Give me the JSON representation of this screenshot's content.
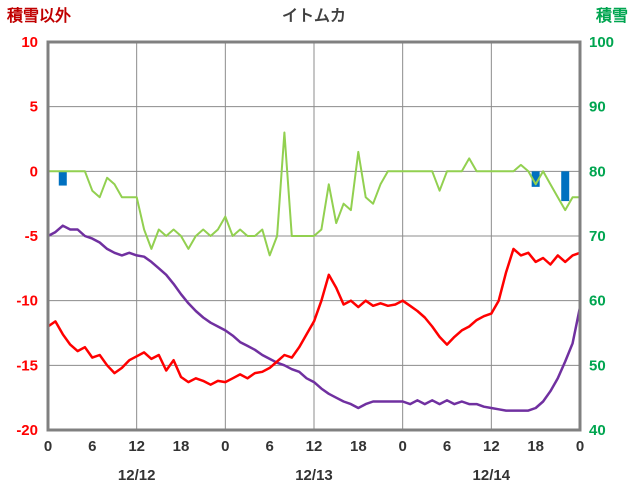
{
  "header": {
    "left_label": "積雪以外",
    "title": "イトムカ",
    "right_label": "積雪"
  },
  "chart_data": {
    "type": "line",
    "title": "イトムカ",
    "background": "#FFFFFF",
    "frame_color": "#808080",
    "grid_color": "#8C8C8C",
    "hours_total": 72,
    "left_axis": {
      "label": "積雪以外",
      "min": -20,
      "max": 10,
      "ticks": [
        10,
        5,
        0,
        -5,
        -10,
        -15,
        -20
      ],
      "color": "#FF0000"
    },
    "right_axis": {
      "label": "積雪",
      "min": 40,
      "max": 100,
      "ticks": [
        100,
        90,
        80,
        70,
        60,
        50,
        40
      ],
      "color": "#00A550"
    },
    "x_axis": {
      "grid_every": 12,
      "color": "#333333",
      "ticks": [
        {
          "hour": 0,
          "label": "0"
        },
        {
          "hour": 6,
          "label": "6"
        },
        {
          "hour": 12,
          "label": "12"
        },
        {
          "hour": 18,
          "label": "18"
        },
        {
          "hour": 24,
          "label": "0"
        },
        {
          "hour": 30,
          "label": "6"
        },
        {
          "hour": 36,
          "label": "12"
        },
        {
          "hour": 42,
          "label": "18"
        },
        {
          "hour": 48,
          "label": "0"
        },
        {
          "hour": 54,
          "label": "6"
        },
        {
          "hour": 60,
          "label": "12"
        },
        {
          "hour": 66,
          "label": "18"
        },
        {
          "hour": 72,
          "label": "0"
        }
      ],
      "dates": [
        {
          "hour": 12,
          "label": "12/12"
        },
        {
          "hour": 36,
          "label": "12/13"
        },
        {
          "hour": 60,
          "label": "12/14"
        }
      ]
    },
    "series": [
      {
        "name": "green",
        "axis": "right",
        "color": "#92D050",
        "width": 2,
        "values": [
          80,
          80,
          80,
          80,
          80,
          80,
          77,
          76,
          79,
          78,
          76,
          76,
          76,
          71,
          68,
          71,
          70,
          71,
          70,
          68,
          70,
          71,
          70,
          71,
          73,
          70,
          71,
          70,
          70,
          71,
          67,
          70,
          86,
          70,
          70,
          70,
          70,
          71,
          78,
          72,
          75,
          74,
          83,
          76,
          75,
          78,
          80,
          80,
          80,
          80,
          80,
          80,
          80,
          77,
          80,
          80,
          80,
          82,
          80,
          80,
          80,
          80,
          80,
          80,
          81,
          80,
          78,
          80,
          78,
          76,
          74,
          76,
          76
        ]
      },
      {
        "name": "purple",
        "axis": "left",
        "color": "#7030A0",
        "width": 2.5,
        "values": [
          -5,
          -4.7,
          -4.2,
          -4.5,
          -4.5,
          -5,
          -5.2,
          -5.5,
          -6,
          -6.3,
          -6.5,
          -6.3,
          -6.5,
          -6.6,
          -7,
          -7.5,
          -8,
          -8.7,
          -9.5,
          -10.2,
          -10.8,
          -11.3,
          -11.7,
          -12,
          -12.3,
          -12.7,
          -13.2,
          -13.5,
          -13.8,
          -14.2,
          -14.5,
          -14.8,
          -15,
          -15.3,
          -15.5,
          -16,
          -16.3,
          -16.8,
          -17.2,
          -17.5,
          -17.8,
          -18,
          -18.3,
          -18,
          -17.8,
          -17.8,
          -17.8,
          -17.8,
          -17.8,
          -18,
          -17.7,
          -18,
          -17.7,
          -18,
          -17.7,
          -18,
          -17.8,
          -18,
          -18,
          -18.2,
          -18.3,
          -18.4,
          -18.5,
          -18.5,
          -18.5,
          -18.5,
          -18.3,
          -17.8,
          -17,
          -16,
          -14.7,
          -13.3,
          -10.5
        ]
      },
      {
        "name": "red",
        "axis": "left",
        "color": "#FF0000",
        "width": 2.5,
        "values": [
          -12,
          -11.6,
          -12.6,
          -13.4,
          -13.9,
          -13.6,
          -14.4,
          -14.2,
          -15,
          -15.6,
          -15.2,
          -14.6,
          -14.3,
          -14,
          -14.5,
          -14.2,
          -15.4,
          -14.6,
          -15.9,
          -16.3,
          -16,
          -16.2,
          -16.5,
          -16.2,
          -16.3,
          -16,
          -15.7,
          -16,
          -15.6,
          -15.5,
          -15.2,
          -14.7,
          -14.2,
          -14.4,
          -13.6,
          -12.6,
          -11.6,
          -10,
          -8,
          -9,
          -10.3,
          -10,
          -10.5,
          -10,
          -10.4,
          -10.2,
          -10.4,
          -10.3,
          -10,
          -10.4,
          -10.8,
          -11.3,
          -12,
          -12.8,
          -13.4,
          -12.8,
          -12.3,
          -12,
          -11.5,
          -11.2,
          -11,
          -10,
          -7.8,
          -6,
          -6.5,
          -6.3,
          -7,
          -6.7,
          -7.2,
          -6.5,
          -7,
          -6.5,
          -6.3
        ]
      }
    ],
    "bars": {
      "name": "blue-bars",
      "axis": "left",
      "color": "#0070C0",
      "points": [
        {
          "hour": 2,
          "value": -1.1
        },
        {
          "hour": 66,
          "value": -1.2
        },
        {
          "hour": 70,
          "value": -2.3
        }
      ]
    }
  }
}
